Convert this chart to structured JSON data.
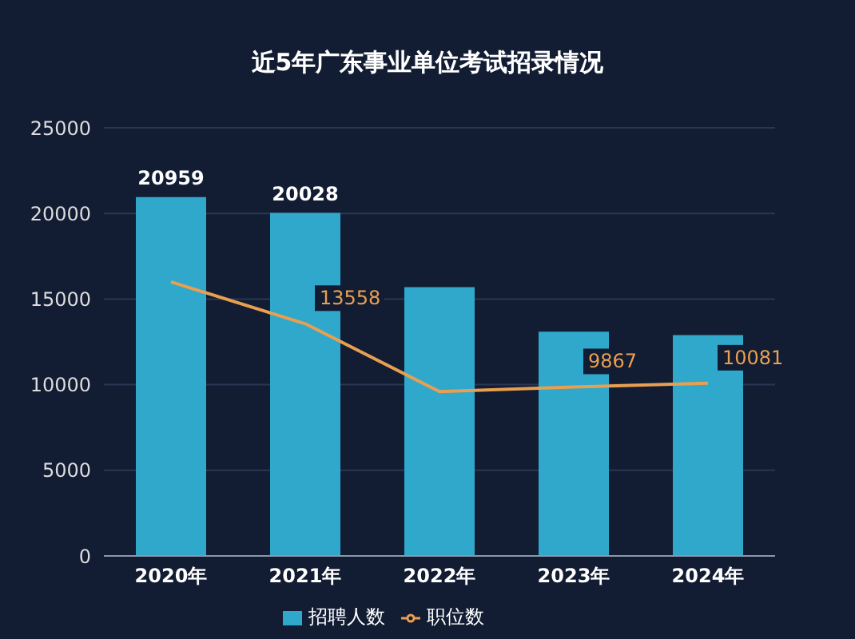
{
  "chart_data": {
    "type": "bar",
    "title": "近5年广东事业单位考试招录情况",
    "categories": [
      "2020年",
      "2021年",
      "2022年",
      "2023年",
      "2024年"
    ],
    "series": [
      {
        "name": "招聘人数",
        "color": "#2fa8cc",
        "values": [
          20959,
          20028,
          15700,
          13100,
          12900
        ],
        "value_labels": [
          "20959",
          "20028",
          null,
          null,
          null
        ]
      },
      {
        "name": "职位数",
        "type": "line",
        "color": "#e8a050",
        "values": [
          16000,
          13558,
          9600,
          9867,
          10081
        ],
        "value_labels": [
          null,
          "13558",
          null,
          "9867",
          "10081"
        ]
      }
    ],
    "ylim": [
      0,
      25000
    ],
    "yticks": [
      0,
      5000,
      10000,
      15000,
      20000,
      25000
    ],
    "grid": "y",
    "legend": "bottom",
    "marker": "none"
  }
}
